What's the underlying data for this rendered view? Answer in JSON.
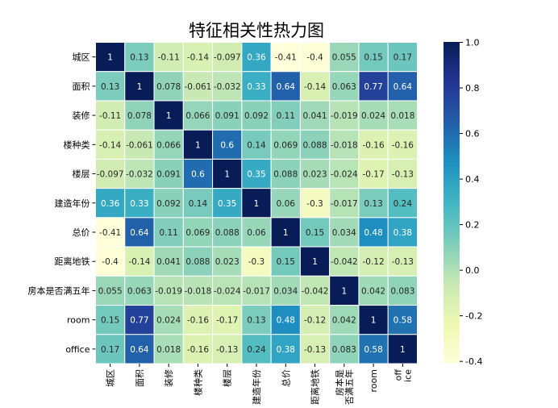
{
  "chart_data": {
    "type": "heatmap",
    "title": "特征相关性热力图",
    "colormap": "YlGnBu",
    "colormap_stops": [
      "#ffffd9",
      "#edf8b1",
      "#c7e9b4",
      "#7fcdbb",
      "#41b6c4",
      "#1d91c0",
      "#225ea8",
      "#253494",
      "#081d58"
    ],
    "vmin": -0.41,
    "vmax": 1.0,
    "colorbar_ticks": [
      "1.0",
      "0.8",
      "0.6",
      "0.4",
      "0.2",
      "0.0",
      "-0.2",
      "-0.4"
    ],
    "colorbar_tick_values": [
      1.0,
      0.8,
      0.6,
      0.4,
      0.2,
      0.0,
      -0.2,
      -0.4
    ],
    "row_labels": [
      "城区",
      "面积",
      "装修",
      "楼种类",
      "楼层",
      "建造年份",
      "总价",
      "距离地铁",
      "房本是否满五年",
      "room",
      "office"
    ],
    "col_labels": [
      "城区",
      "面积",
      "装修",
      "楼种类",
      "楼层",
      "建造年份",
      "总价",
      "距离地铁",
      "房本是否满五年",
      "room",
      "office"
    ],
    "values": [
      [
        "1",
        "0.13",
        "-0.11",
        "-0.14",
        "-0.097",
        "0.36",
        "-0.41",
        "-0.4",
        "0.055",
        "0.15",
        "0.17"
      ],
      [
        "0.13",
        "1",
        "0.078",
        "-0.061",
        "-0.032",
        "0.33",
        "0.64",
        "-0.14",
        "0.063",
        "0.77",
        "0.64"
      ],
      [
        "-0.11",
        "0.078",
        "1",
        "0.066",
        "0.091",
        "0.092",
        "0.11",
        "0.041",
        "-0.019",
        "0.024",
        "0.018"
      ],
      [
        "-0.14",
        "-0.061",
        "0.066",
        "1",
        "0.6",
        "0.14",
        "0.069",
        "0.088",
        "-0.018",
        "-0.16",
        "-0.16"
      ],
      [
        "-0.097",
        "-0.032",
        "0.091",
        "0.6",
        "1",
        "0.35",
        "0.088",
        "0.023",
        "-0.024",
        "-0.17",
        "-0.13"
      ],
      [
        "0.36",
        "0.33",
        "0.092",
        "0.14",
        "0.35",
        "1",
        "0.06",
        "-0.3",
        "-0.017",
        "0.13",
        "0.24"
      ],
      [
        "-0.41",
        "0.64",
        "0.11",
        "0.069",
        "0.088",
        "0.06",
        "1",
        "0.15",
        "0.034",
        "0.48",
        "0.38"
      ],
      [
        "-0.4",
        "-0.14",
        "0.041",
        "0.088",
        "0.023",
        "-0.3",
        "0.15",
        "1",
        "-0.042",
        "-0.12",
        "-0.13"
      ],
      [
        "0.055",
        "0.063",
        "-0.019",
        "-0.018",
        "-0.024",
        "-0.017",
        "0.034",
        "-0.042",
        "1",
        "0.042",
        "0.083"
      ],
      [
        "0.15",
        "0.77",
        "0.024",
        "-0.16",
        "-0.17",
        "0.13",
        "0.48",
        "-0.12",
        "0.042",
        "1",
        "0.58"
      ],
      [
        "0.17",
        "0.64",
        "0.018",
        "-0.16",
        "-0.13",
        "0.24",
        "0.38",
        "-0.13",
        "0.083",
        "0.58",
        "1"
      ]
    ],
    "xlabel": "",
    "ylabel": "",
    "legend": "colorbar-right"
  }
}
